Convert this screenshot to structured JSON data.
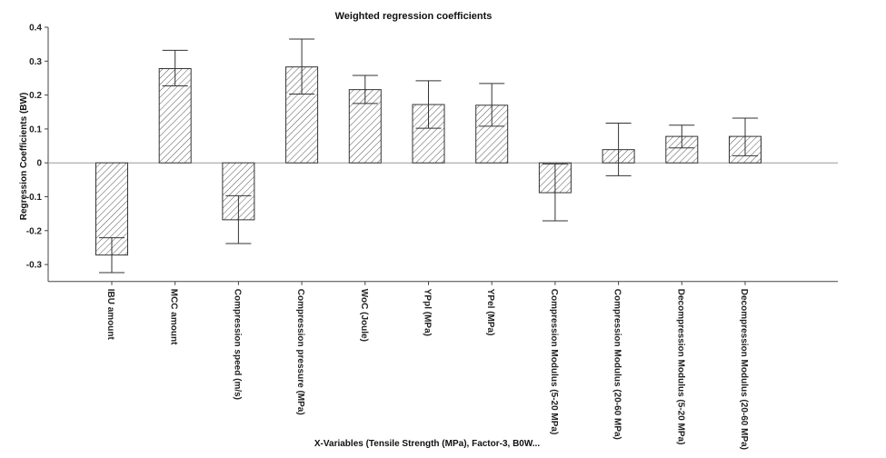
{
  "chart_data": {
    "type": "bar",
    "title": "Weighted regression coefficients",
    "xlabel": "X-Variables (Tensile Strength (MPa), Factor-3, B0W...",
    "ylabel": "Regression Coefficients (BW)",
    "ylim": [
      -0.35,
      0.4
    ],
    "yticks": [
      -0.3,
      -0.2,
      -0.1,
      0,
      0.1,
      0.2,
      0.3,
      0.4
    ],
    "ytick_labels": [
      "-0.3",
      "-0.2",
      "-0.1",
      "0",
      "0.1",
      "0.2",
      "0.3",
      "0.4"
    ],
    "grid": false,
    "bar_fill": "hatched",
    "colors": {
      "bar_stroke": "#333333",
      "hatch": "#555555",
      "axis": "#444444",
      "zero_line": "#999999"
    },
    "categories": [
      "IBU amount",
      "MCC amount",
      "Compression speed (m/s)",
      "Compression pressure (MPa)",
      "WoC (Joule)",
      "YPpl (MPa)",
      "YPel (MPa)",
      "Compression Modulus (5-20 MPa)",
      "Compression Modulus (20-60 MPa)",
      "Decompression Modulus (5-20 MPa)",
      "Decompression Modulus (20-60 MPa)"
    ],
    "values": [
      -0.272,
      0.278,
      -0.168,
      0.283,
      0.216,
      0.172,
      0.17,
      -0.088,
      0.039,
      0.078,
      0.078
    ],
    "error_low": [
      -0.324,
      0.227,
      -0.238,
      0.203,
      0.175,
      0.102,
      0.108,
      -0.171,
      -0.038,
      0.044,
      0.021
    ],
    "error_high": [
      -0.221,
      0.332,
      -0.097,
      0.365,
      0.258,
      0.242,
      0.234,
      -0.003,
      0.117,
      0.111,
      0.132
    ]
  }
}
